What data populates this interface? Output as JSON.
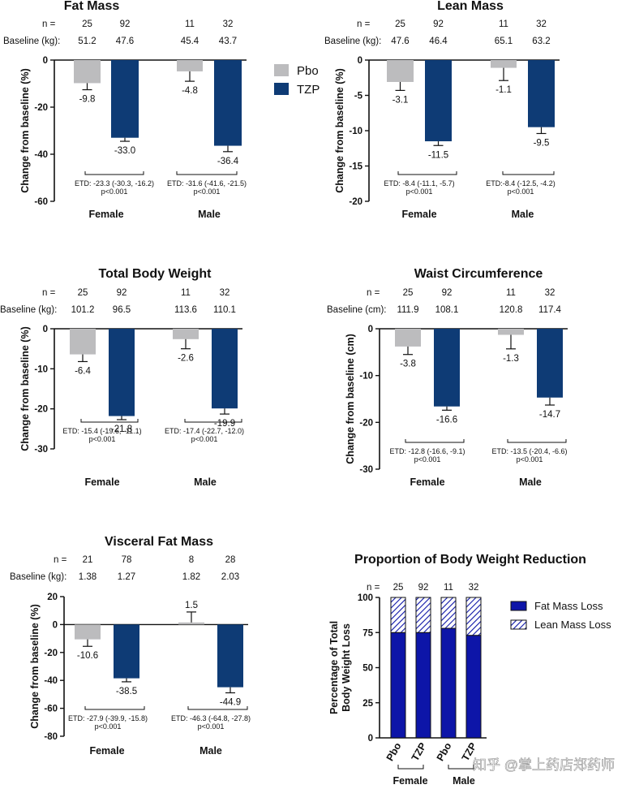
{
  "colors": {
    "pbo": "#bcbcbe",
    "tzp": "#0e3b75",
    "fat": "#0d15a8",
    "lean_bg": "#ffffff",
    "lean_hatch": "#0d15a8"
  },
  "legend": {
    "pbo": "Pbo",
    "tzp": "TZP",
    "fat": "Fat Mass Loss",
    "lean": "Lean Mass Loss"
  },
  "labels": {
    "n": "n =",
    "female": "Female",
    "male": "Male",
    "ylabel": "Change from baseline (%)",
    "ylabel_cm": "Change from baseline (cm)"
  },
  "watermark": "知乎 @掌上药店郑药师",
  "chart_data": [
    {
      "id": "fat",
      "type": "bar",
      "title": "Fat Mass",
      "ylabel": "Change from baseline (%)",
      "ylim": [
        -60,
        0
      ],
      "yticks": [
        0,
        -20,
        -40,
        -60
      ],
      "baseline_label": "Baseline (kg):",
      "groups": [
        "Female",
        "Male"
      ],
      "series": [
        {
          "name": "Pbo",
          "n": [
            "25",
            "11"
          ],
          "baseline": [
            "51.2",
            "45.4"
          ],
          "values": [
            -9.8,
            -4.8
          ],
          "labels": [
            "-9.8",
            "-4.8"
          ],
          "err": [
            2.8,
            4.2
          ]
        },
        {
          "name": "TZP",
          "n": [
            "92",
            "32"
          ],
          "baseline": [
            "47.6",
            "43.7"
          ],
          "values": [
            -33.0,
            -36.4
          ],
          "labels": [
            "-33.0",
            "-36.4"
          ],
          "err": [
            1.5,
            2.5
          ]
        }
      ],
      "etd": [
        "ETD: -23.3 (-30.3, -16.2)",
        "ETD: -31.6 (-41.6, -21.5)"
      ],
      "p": [
        "p<0.001",
        "p<0.001"
      ]
    },
    {
      "id": "lean",
      "type": "bar",
      "title": "Lean Mass",
      "ylabel": "Change from baseline (%)",
      "ylim": [
        -20,
        0
      ],
      "yticks": [
        0,
        -5,
        -10,
        -15,
        -20
      ],
      "baseline_label": "Baseline (kg):",
      "groups": [
        "Female",
        "Male"
      ],
      "series": [
        {
          "name": "Pbo",
          "n": [
            "25",
            "11"
          ],
          "baseline": [
            "47.6",
            "65.1"
          ],
          "values": [
            -3.1,
            -1.1
          ],
          "labels": [
            "-3.1",
            "-1.1"
          ],
          "err": [
            1.2,
            1.8
          ]
        },
        {
          "name": "TZP",
          "n": [
            "92",
            "32"
          ],
          "baseline": [
            "46.4",
            "63.2"
          ],
          "values": [
            -11.5,
            -9.5
          ],
          "labels": [
            "-11.5",
            "-9.5"
          ],
          "err": [
            0.6,
            0.9
          ]
        }
      ],
      "etd": [
        "ETD: -8.4 (-11.1, -5.7)",
        "ETD:-8.4 (-12.5, -4.2)"
      ],
      "p": [
        "p<0.001",
        "p<0.001"
      ]
    },
    {
      "id": "tbw",
      "type": "bar",
      "title": "Total Body Weight",
      "ylabel": "Change from baseline (%)",
      "ylim": [
        -30,
        0
      ],
      "yticks": [
        0,
        -10,
        -20,
        -30
      ],
      "baseline_label": "Baseline (kg):",
      "groups": [
        "Female",
        "Male"
      ],
      "series": [
        {
          "name": "Pbo",
          "n": [
            "25",
            "11"
          ],
          "baseline": [
            "101.2",
            "113.6"
          ],
          "values": [
            -6.4,
            -2.6
          ],
          "labels": [
            "-6.4",
            "-2.6"
          ],
          "err": [
            1.8,
            2.4
          ]
        },
        {
          "name": "TZP",
          "n": [
            "92",
            "32"
          ],
          "baseline": [
            "96.5",
            "110.1"
          ],
          "values": [
            -21.8,
            -19.9
          ],
          "labels": [
            "-21.8",
            "-19.9"
          ],
          "err": [
            0.9,
            1.4
          ]
        }
      ],
      "etd": [
        "ETD: -15.4 (-19.6, -11.1)",
        "ETD: -17.4 (-22.7, -12.0)"
      ],
      "p": [
        "p<0.001",
        "p<0.001"
      ]
    },
    {
      "id": "waist",
      "type": "bar",
      "title": "Waist Circumference",
      "ylabel": "Change from baseline (cm)",
      "ylim": [
        -30,
        0
      ],
      "yticks": [
        0,
        -10,
        -20,
        -30
      ],
      "baseline_label": "Baseline (cm):",
      "groups": [
        "Female",
        "Male"
      ],
      "series": [
        {
          "name": "Pbo",
          "n": [
            "25",
            "11"
          ],
          "baseline": [
            "111.9",
            "120.8"
          ],
          "values": [
            -3.8,
            -1.3
          ],
          "labels": [
            "-3.8",
            "-1.3"
          ],
          "err": [
            1.7,
            3.0
          ]
        },
        {
          "name": "TZP",
          "n": [
            "92",
            "32"
          ],
          "baseline": [
            "108.1",
            "117.4"
          ],
          "values": [
            -16.6,
            -14.7
          ],
          "labels": [
            "-16.6",
            "-14.7"
          ],
          "err": [
            0.8,
            1.6
          ]
        }
      ],
      "etd": [
        "ETD: -12.8 (-16.6, -9.1)",
        "ETD: -13.5 (-20.4, -6.6)"
      ],
      "p": [
        "p<0.001",
        "p<0.001"
      ]
    },
    {
      "id": "visc",
      "type": "bar",
      "title": "Visceral Fat Mass",
      "ylabel": "Change from baseline (%)",
      "ylim": [
        -80,
        20
      ],
      "yticks": [
        20,
        0,
        -20,
        -40,
        -60,
        -80
      ],
      "baseline_label": "Baseline (kg):",
      "groups": [
        "Female",
        "Male"
      ],
      "series": [
        {
          "name": "Pbo",
          "n": [
            "21",
            "8"
          ],
          "baseline": [
            "1.38",
            "1.82"
          ],
          "values": [
            -10.6,
            1.5
          ],
          "labels": [
            "-10.6",
            "1.5"
          ],
          "err": [
            5.0,
            7.5
          ]
        },
        {
          "name": "TZP",
          "n": [
            "78",
            "28"
          ],
          "baseline": [
            "1.27",
            "2.03"
          ],
          "values": [
            -38.5,
            -44.9
          ],
          "labels": [
            "-38.5",
            "-44.9"
          ],
          "err": [
            2.5,
            4.0
          ]
        }
      ],
      "etd": [
        "ETD: -27.9 (-39.9, -15.8)",
        "ETD: -46.3 (-64.8, -27.8)"
      ],
      "p": [
        "p<0.001",
        "p<0.001"
      ]
    },
    {
      "id": "prop",
      "type": "bar",
      "stacked": true,
      "title": "Proportion of Body Weight Reduction",
      "ylabel": "Percentage of Total Body Weight Loss",
      "ylim": [
        0,
        100
      ],
      "yticks": [
        0,
        25,
        50,
        75,
        100
      ],
      "categories": [
        "Pbo",
        "TZP",
        "Pbo",
        "TZP"
      ],
      "n": [
        "25",
        "92",
        "11",
        "32"
      ],
      "groups": [
        "Female",
        "Male"
      ],
      "series": [
        {
          "name": "Fat Mass Loss",
          "values": [
            75,
            75,
            78,
            73
          ]
        },
        {
          "name": "Lean Mass Loss",
          "values": [
            25,
            25,
            22,
            27
          ]
        }
      ]
    }
  ]
}
